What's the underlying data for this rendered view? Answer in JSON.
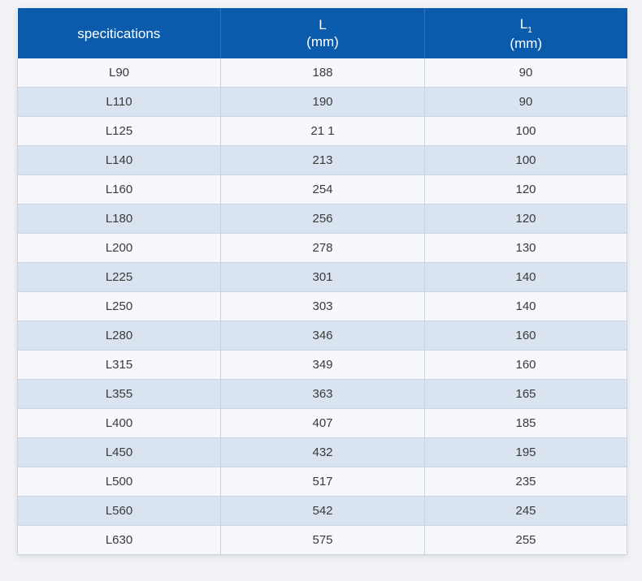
{
  "table": {
    "header": {
      "col1": "specitications",
      "col2_line1": "L",
      "col2_line2": "(mm)",
      "col3_letter": "L",
      "col3_sub": "1",
      "col3_line2": "(mm)"
    },
    "rows": [
      [
        "L90",
        "188",
        "90"
      ],
      [
        "L110",
        "190",
        "90"
      ],
      [
        "L125",
        "21 1",
        "100"
      ],
      [
        "L140",
        "213",
        "100"
      ],
      [
        "L160",
        "254",
        "120"
      ],
      [
        "L180",
        "256",
        "120"
      ],
      [
        "L200",
        "278",
        "130"
      ],
      [
        "L225",
        "301",
        "140"
      ],
      [
        "L250",
        "303",
        "140"
      ],
      [
        "L280",
        "346",
        "160"
      ],
      [
        "L315",
        "349",
        "160"
      ],
      [
        "L355",
        "363",
        "165"
      ],
      [
        "L400",
        "407",
        "185"
      ],
      [
        "L450",
        "432",
        "195"
      ],
      [
        "L500",
        "517",
        "235"
      ],
      [
        "L560",
        "542",
        "245"
      ],
      [
        "L630",
        "575",
        "255"
      ]
    ]
  },
  "colors": {
    "header_bg": "#0a5bac",
    "row_light": "#f7f8fb",
    "row_dark": "#dae4f1",
    "page_bg": "#f2f3f7"
  }
}
